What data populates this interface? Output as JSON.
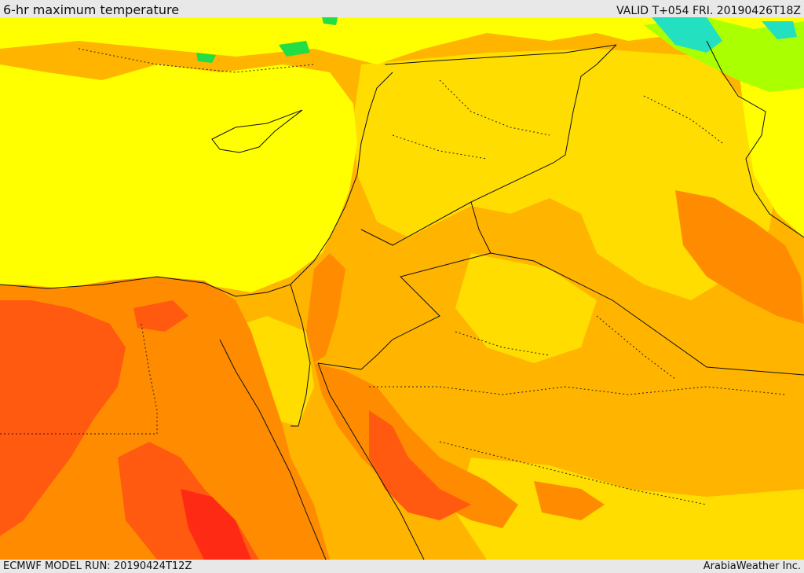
{
  "header": {
    "title": "6-hr maximum temperature",
    "valid": "VALID T+054 FRI. 20190426T18Z"
  },
  "footer": {
    "model_run": "ECMWF MODEL RUN: 20190424T12Z",
    "credit": "ArabiaWeather Inc."
  },
  "map": {
    "field": "6-hr maximum temperature",
    "colors": {
      "green": "#22dd44",
      "cyan": "#22e0c0",
      "light_green": "#aaff00",
      "yellow": "#ffff00",
      "gold": "#ffdd00",
      "orange_light": "#ffb400",
      "orange": "#ff8c00",
      "red_orange": "#ff5a10",
      "red": "#ff2a14"
    }
  }
}
